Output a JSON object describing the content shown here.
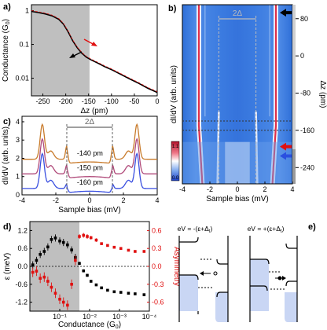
{
  "panels": {
    "a": {
      "label": "a)"
    },
    "b": {
      "label": "b)"
    },
    "c": {
      "label": "c)"
    },
    "d": {
      "label": "d)"
    },
    "e": {
      "label": "e)"
    }
  },
  "chart_data": [
    {
      "panel": "a",
      "type": "line",
      "xlabel": "Δz (pm)",
      "ylabel": "Conductance (G",
      "ylabel_sub": "0",
      "ylabel_end": ")",
      "x_ticks": [
        "-250",
        "-200",
        "-150",
        "-100",
        "-50",
        "0"
      ],
      "y_ticks": [
        "1",
        "0.1",
        "0.01"
      ],
      "xlim": [
        -275,
        0
      ],
      "ylim_log": [
        0.003,
        1.5
      ],
      "shaded_x": [
        -275,
        -148
      ],
      "series": [
        {
          "color": "#000000",
          "x": [
            -275,
            -260,
            -245,
            -230,
            -215,
            -205,
            -195,
            -185,
            -175,
            -165,
            -155,
            -145,
            -130,
            -115,
            -100,
            -80,
            -60,
            -40,
            -20,
            0
          ],
          "y": [
            0.95,
            0.88,
            0.8,
            0.7,
            0.55,
            0.4,
            0.24,
            0.13,
            0.08,
            0.055,
            0.042,
            0.035,
            0.028,
            0.022,
            0.018,
            0.013,
            0.0095,
            0.007,
            0.005,
            0.0038
          ]
        }
      ],
      "arrows": [
        {
          "color": "#e01010",
          "dir": "down"
        },
        {
          "color": "#000000",
          "dir": "up"
        }
      ]
    },
    {
      "panel": "b",
      "type": "heatmap",
      "xlabel": "Sample bias (mV)",
      "ylabel": "dI/dV (arb. units)",
      "y2label": "Δz (pm)",
      "x_ticks": [
        "-4",
        "-2",
        "0",
        "2",
        "4"
      ],
      "y2_ticks": [
        "80",
        "0",
        "-80",
        "-160",
        "-240"
      ],
      "xlim": [
        -4,
        4
      ],
      "ylim": [
        -275,
        110
      ],
      "gap_label": "2Δ",
      "gap_x": [
        -1.35,
        1.35
      ],
      "dotted_z": [
        -140,
        -160
      ],
      "colorbar": {
        "top": "1.1",
        "bottom": "0.0"
      },
      "markers": [
        {
          "color": "#000000",
          "z": 93
        },
        {
          "color": "#e01010",
          "z": -195
        },
        {
          "color": "#2a4fe0",
          "z": -215
        }
      ]
    },
    {
      "panel": "c",
      "type": "line",
      "xlabel": "Sample bias (mV)",
      "ylabel": "dI/dV (arb. units)",
      "x_ticks": [
        "-4",
        "-2",
        "0",
        "2",
        "4"
      ],
      "y_ticks": [
        "0",
        "1",
        "2",
        "3",
        "4"
      ],
      "xlim": [
        -4,
        4
      ],
      "ylim": [
        0,
        4.3
      ],
      "gap_label": "2Δ",
      "gap_x": [
        -1.35,
        1.35
      ],
      "series": [
        {
          "name": "-140 pm",
          "color": "#c87a2a",
          "offset": 1.6
        },
        {
          "name": "-150 pm",
          "color": "#b04a7a",
          "offset": 0.8
        },
        {
          "name": "-160 pm",
          "color": "#3a4fe0",
          "offset": 0.0
        }
      ]
    },
    {
      "panel": "d",
      "type": "scatter",
      "xlabel": "Conductance (G",
      "xlabel_sub": "0",
      "xlabel_end": ")",
      "ylabel": "ε (meV)",
      "y2label": "Asymmetry",
      "x_ticks": [
        "10⁻¹",
        "10⁻²",
        "10⁻³",
        "10⁻⁴"
      ],
      "y_ticks": [
        "1.2",
        "0.6",
        "0.0",
        "-0.6",
        "-1.2"
      ],
      "y2_ticks": [
        "0.6",
        "0.3",
        "0.0",
        "-0.3",
        "-0.6"
      ],
      "xlim_log_reversed": [
        1.0,
        0.0001
      ],
      "ylim": [
        -1.5,
        1.5
      ],
      "y2lim": [
        -0.75,
        0.75
      ],
      "shaded_x": [
        1.0,
        0.022
      ],
      "series": [
        {
          "name": "epsilon",
          "color": "#000000",
          "x": [
            0.8,
            0.6,
            0.45,
            0.33,
            0.25,
            0.19,
            0.14,
            0.1,
            0.075,
            0.055,
            0.04,
            0.03,
            0.022,
            0.016,
            0.012,
            0.009,
            0.006,
            0.004,
            0.0025,
            0.0015,
            0.0009,
            0.0005,
            0.0003,
            0.00015
          ],
          "y": [
            0.05,
            0.2,
            0.4,
            0.5,
            0.65,
            0.9,
            0.95,
            0.85,
            0.8,
            0.72,
            0.55,
            0.3,
            0.1,
            -0.15,
            -0.3,
            -0.5,
            -0.62,
            -0.72,
            -0.8,
            -0.85,
            -0.87,
            -0.9,
            -0.92,
            -0.95
          ],
          "err": [
            0.12,
            0.12,
            0.12,
            0.12,
            0.12,
            0.12,
            0.12,
            0.12,
            0.12,
            0.12,
            0.12,
            0.12,
            0.05,
            0.05,
            0.05,
            0.04,
            0.04,
            0.03,
            0.03,
            0.03,
            0.03,
            0.03,
            0.03,
            0.03
          ]
        },
        {
          "name": "asymmetry",
          "color": "#e01010",
          "x": [
            0.8,
            0.6,
            0.45,
            0.33,
            0.25,
            0.19,
            0.14,
            0.1,
            0.075,
            0.055,
            0.04,
            0.03,
            0.022,
            0.016,
            0.012,
            0.009,
            0.006,
            0.004,
            0.0025,
            0.0015,
            0.0009,
            0.0005,
            0.0003,
            0.00015
          ],
          "y": [
            -0.1,
            -0.08,
            -0.2,
            -0.18,
            -0.25,
            -0.35,
            -0.45,
            -0.55,
            -0.6,
            -0.65,
            -0.3,
            0.1,
            0.5,
            0.52,
            0.5,
            0.48,
            0.44,
            0.38,
            0.35,
            0.32,
            0.3,
            0.27,
            0.25,
            0.25
          ],
          "err": [
            0.08,
            0.08,
            0.08,
            0.08,
            0.08,
            0.08,
            0.08,
            0.08,
            0.08,
            0.08,
            0.08,
            0.08,
            0.04,
            0.04,
            0.04,
            0.03,
            0.03,
            0.02,
            0.02,
            0.02,
            0.02,
            0.02,
            0.02,
            0.02
          ]
        }
      ]
    }
  ],
  "schematic": {
    "left_label_pre": "eV = -(ε+Δ",
    "left_label_sub": "t",
    "left_label_post": ")",
    "right_label_pre": "eV = +(ε+Δ",
    "right_label_sub": "t",
    "right_label_post": ")"
  }
}
